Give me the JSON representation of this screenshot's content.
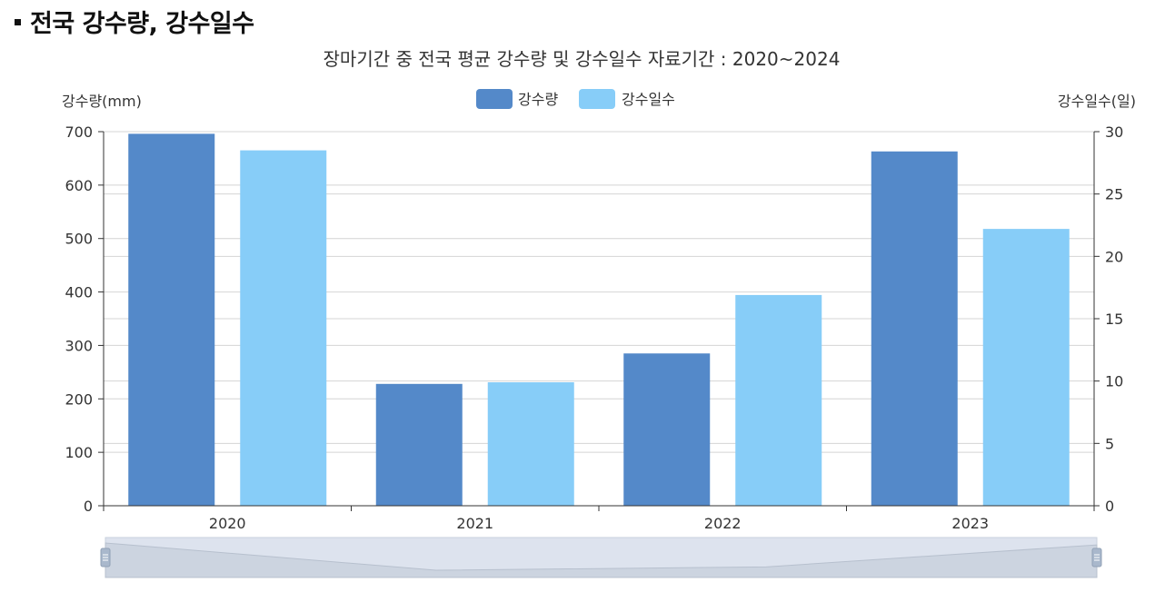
{
  "page": {
    "heading": "전국 강수량, 강수일수"
  },
  "chart_data": {
    "type": "bar",
    "title": "장마기간 중 전국 평균 강수량 및 강수일수 자료기간 : 2020~2024",
    "categories": [
      "2020",
      "2021",
      "2022",
      "2023"
    ],
    "series": [
      {
        "name": "강수량",
        "axis": "left",
        "color": "#5489c9",
        "values": [
          696,
          228,
          285,
          663
        ]
      },
      {
        "name": "강수일수",
        "axis": "right",
        "color": "#87cdf8",
        "values": [
          28.5,
          9.9,
          16.9,
          22.2
        ]
      }
    ],
    "y_left": {
      "label": "강수량(mm)",
      "ylim": [
        0,
        700
      ],
      "ticks": [
        0,
        100,
        200,
        300,
        400,
        500,
        600,
        700
      ]
    },
    "y_right": {
      "label": "강수일수(일)",
      "ylim": [
        0,
        30
      ],
      "ticks": [
        0,
        5,
        10,
        15,
        20,
        25,
        30
      ]
    },
    "legend": "top-center",
    "grid": true,
    "zoom_slider": true
  }
}
